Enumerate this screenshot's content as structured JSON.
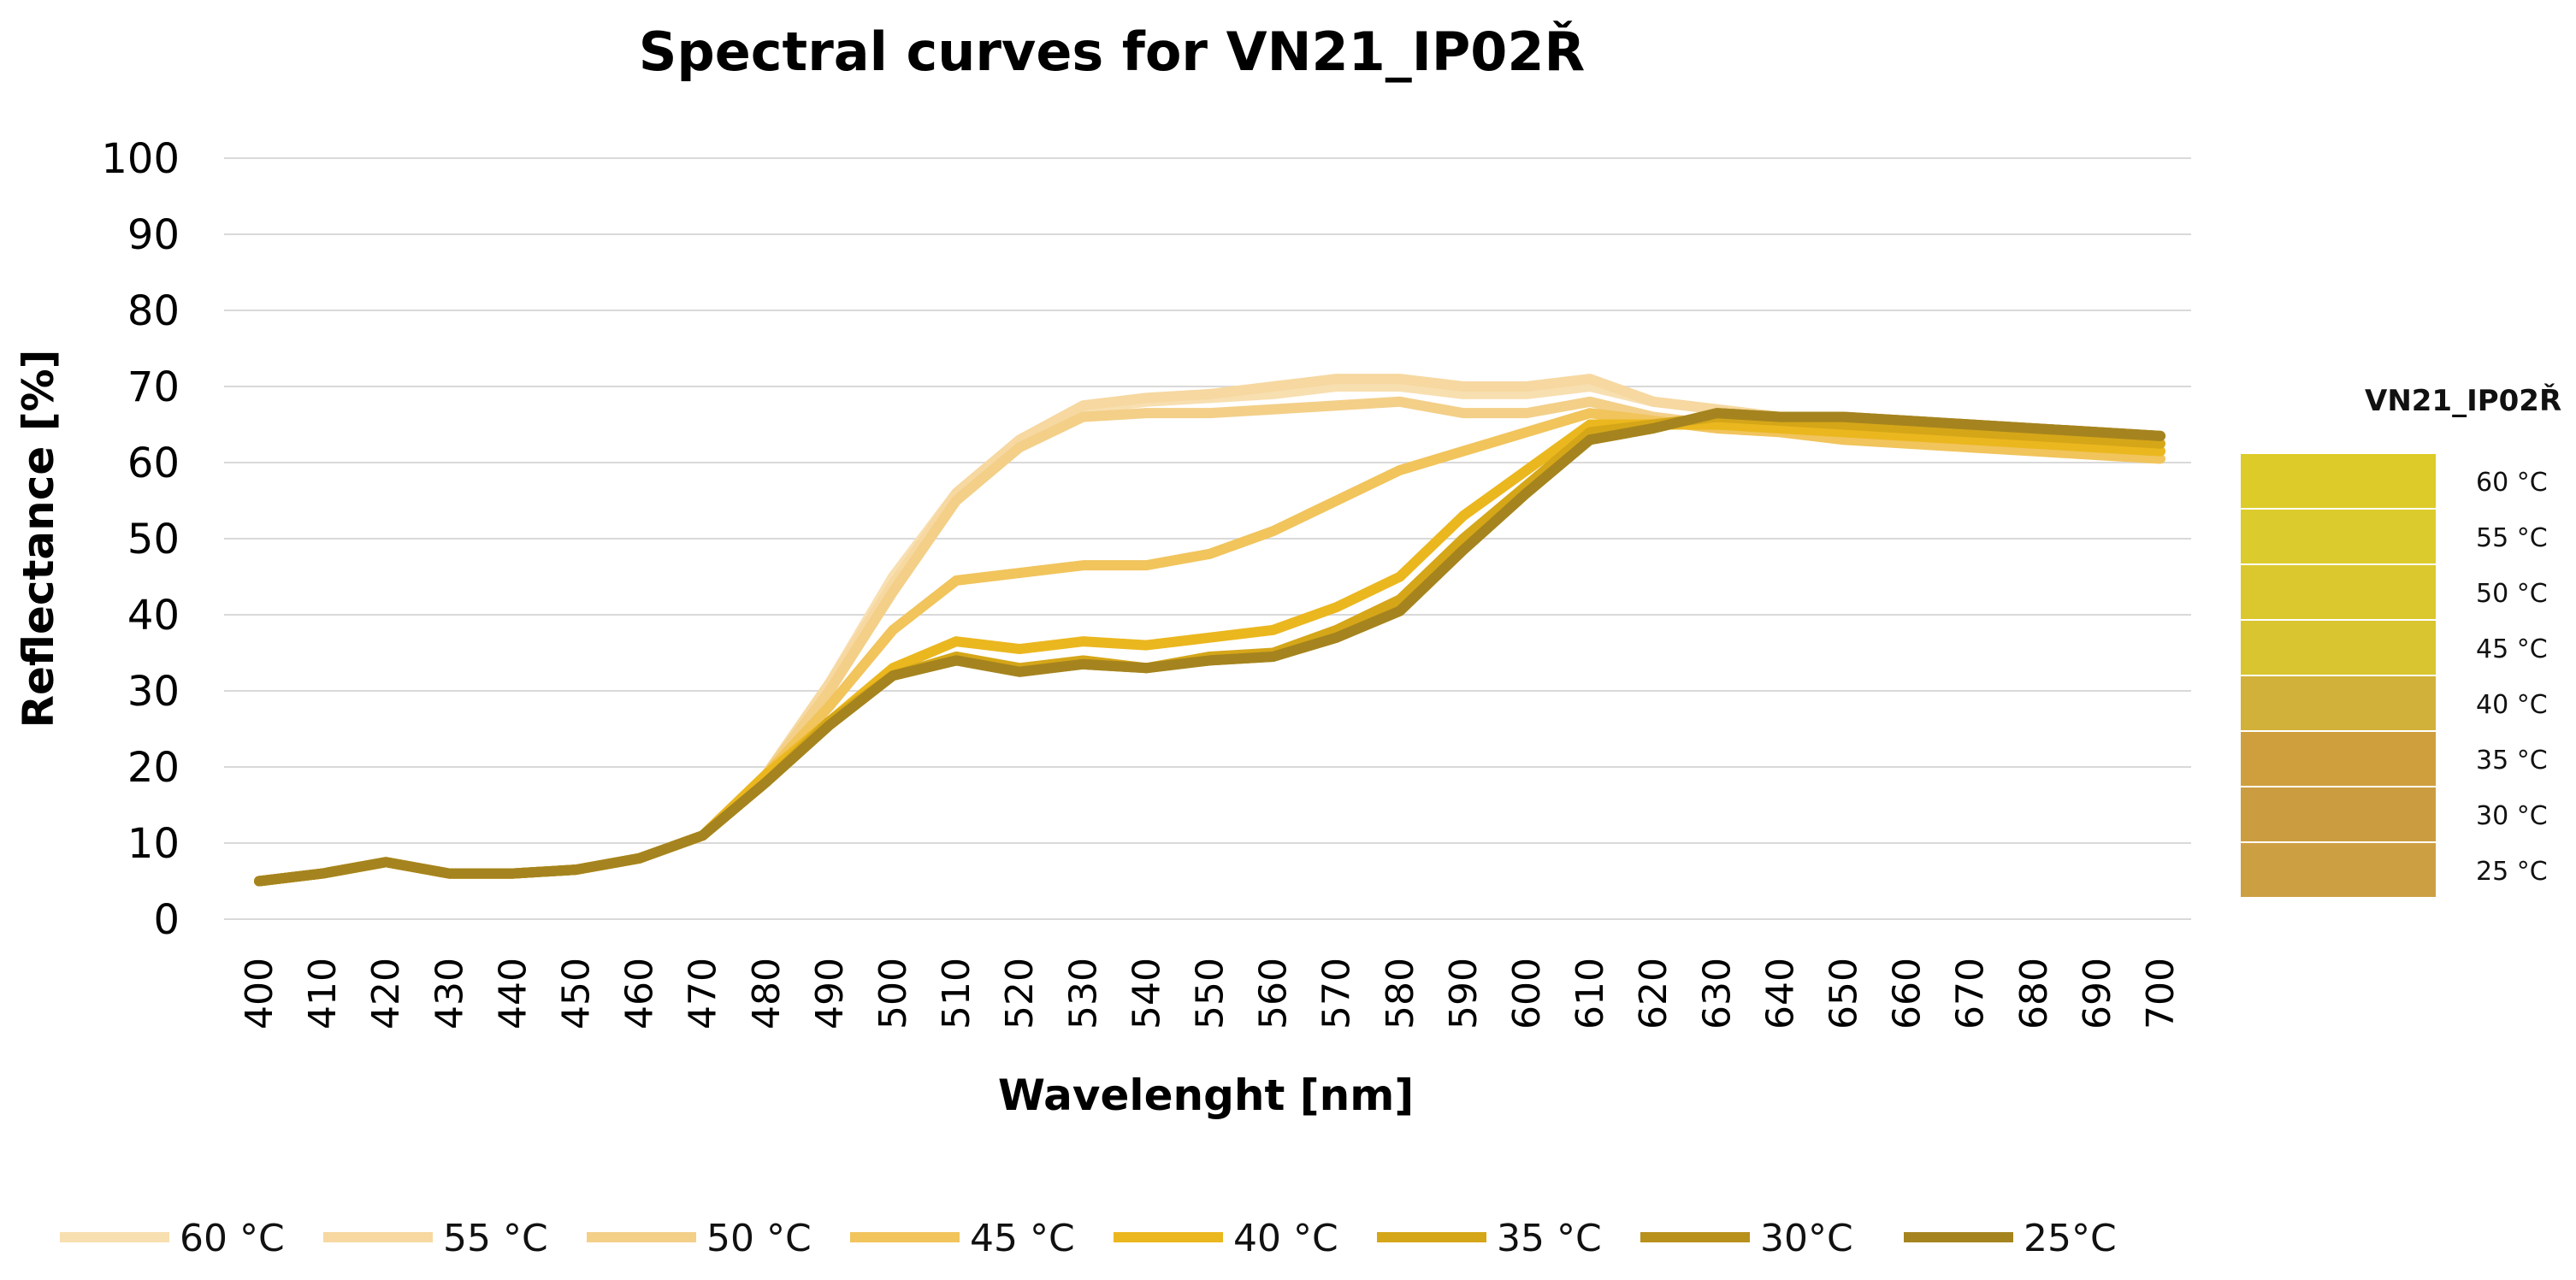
{
  "chart_data": {
    "type": "line",
    "title": "Spectral curves for VN21_IP02Ř",
    "xlabel": "Wavelenght [nm]",
    "ylabel": "Reflectance [%]",
    "x": [
      400,
      410,
      420,
      430,
      440,
      450,
      460,
      470,
      480,
      490,
      500,
      510,
      520,
      530,
      540,
      550,
      560,
      570,
      580,
      590,
      600,
      610,
      620,
      630,
      640,
      650,
      660,
      670,
      680,
      690,
      700
    ],
    "ylim": [
      0,
      100
    ],
    "yticks": [
      0,
      10,
      20,
      30,
      40,
      50,
      60,
      70,
      80,
      90,
      100
    ],
    "grid": true,
    "legend_position": "bottom",
    "series": [
      {
        "name": "60 °C",
        "color": "#f8dfb0",
        "values": [
          5,
          6,
          7.5,
          6,
          6,
          6.5,
          8,
          11,
          19,
          31,
          45,
          56,
          63,
          67,
          68,
          68.5,
          69,
          70,
          70,
          69,
          69,
          70,
          68,
          67,
          66,
          66,
          65.5,
          65,
          64.5,
          64,
          63.5
        ]
      },
      {
        "name": "55 °C",
        "color": "#f6d8a0",
        "values": [
          5,
          6,
          7.5,
          6,
          6,
          6.5,
          8,
          11,
          19,
          31,
          44,
          56,
          63,
          67.5,
          68.5,
          69,
          70,
          71,
          71,
          70,
          70,
          71,
          68,
          67,
          66,
          66,
          65.5,
          65,
          64.5,
          64,
          63.5
        ]
      },
      {
        "name": "50 °C",
        "color": "#f3cf88",
        "values": [
          5,
          6,
          7.5,
          6,
          6,
          6.5,
          8,
          11,
          19,
          30,
          43,
          55,
          62,
          66,
          66.5,
          66.5,
          67,
          67.5,
          68,
          66.5,
          66.5,
          68,
          66,
          65,
          64.5,
          64,
          63.5,
          63,
          62.5,
          62,
          61.5
        ]
      },
      {
        "name": "45 °C",
        "color": "#f1c45c",
        "values": [
          5,
          6,
          7.5,
          6,
          6,
          6.5,
          8,
          11,
          19,
          28,
          38,
          44.5,
          45.5,
          46.5,
          46.5,
          48,
          51,
          55,
          59,
          61.5,
          64,
          66.5,
          65.5,
          64.5,
          64,
          63,
          62.5,
          62,
          61.5,
          61,
          60.5
        ]
      },
      {
        "name": "40 °C",
        "color": "#ebb71f",
        "values": [
          5,
          6,
          7.5,
          6,
          6,
          6.5,
          8,
          11,
          19,
          26,
          33,
          36.5,
          35.5,
          36.5,
          36,
          37,
          38,
          41,
          45,
          53,
          59,
          65,
          65,
          65,
          64.5,
          64,
          63.5,
          63,
          62.5,
          62,
          61.5
        ]
      },
      {
        "name": "35 °C",
        "color": "#d5a618",
        "values": [
          5,
          6,
          7.5,
          6,
          6,
          6.5,
          8,
          11,
          18,
          26,
          32,
          34.5,
          33,
          34,
          33,
          34.5,
          35,
          38,
          42,
          50,
          57,
          64,
          65,
          66,
          65.5,
          65,
          64.5,
          64,
          63.5,
          63,
          62.5
        ]
      },
      {
        "name": "30°C",
        "color": "#b8901c",
        "values": [
          5,
          6,
          7.5,
          6,
          6,
          6.5,
          8,
          11,
          18,
          25.5,
          32,
          34,
          32.5,
          33.5,
          33,
          34,
          34.5,
          37,
          40.5,
          48.5,
          56,
          63,
          64.5,
          66.5,
          66,
          66,
          65.5,
          65,
          64.5,
          64,
          63.5
        ]
      },
      {
        "name": "25°C",
        "color": "#a5841f",
        "values": [
          5,
          6,
          7.5,
          6,
          6,
          6.5,
          8,
          11,
          18,
          25.5,
          32,
          34,
          32.5,
          33.5,
          33,
          34,
          34.5,
          37,
          40.5,
          48.5,
          56,
          63,
          64.5,
          66.5,
          66,
          66,
          65.5,
          65,
          64.5,
          64,
          63.5
        ]
      }
    ],
    "swatch_panel": {
      "title": "VN21_IP02Ř",
      "items": [
        {
          "label": "60 °C",
          "color": "#dccb28"
        },
        {
          "label": "55 °C",
          "color": "#dccb2c"
        },
        {
          "label": "50 °C",
          "color": "#dbc82e"
        },
        {
          "label": "45 °C",
          "color": "#d9c52f"
        },
        {
          "label": "40 °C",
          "color": "#d2b13a"
        },
        {
          "label": "35 °C",
          "color": "#cf9f3e"
        },
        {
          "label": "30 °C",
          "color": "#cc9d40"
        },
        {
          "label": "25 °C",
          "color": "#cd9f43"
        }
      ]
    }
  }
}
